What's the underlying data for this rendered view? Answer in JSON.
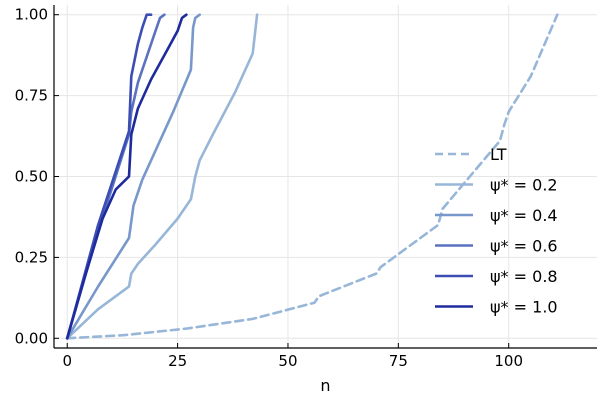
{
  "chart_data": {
    "type": "line",
    "xlabel": "n",
    "ylabel": "",
    "xlim": [
      -3,
      120
    ],
    "ylim": [
      -0.03,
      1.03
    ],
    "xticks": [
      0,
      25,
      50,
      75,
      100
    ],
    "xtick_labels": [
      "0",
      "25",
      "50",
      "75",
      "100"
    ],
    "yticks": [
      0,
      0.25,
      0.5,
      0.75,
      1.0
    ],
    "ytick_labels": [
      "0.00",
      "0.25",
      "0.50",
      "0.75",
      "1.00"
    ],
    "grid": true,
    "legend_position": "bottom-right",
    "series": [
      {
        "name": "LT",
        "style": "dashed",
        "color": "#97b6d8",
        "x": [
          0,
          13,
          27,
          42,
          56,
          57,
          70,
          71,
          84,
          85,
          98,
          99,
          100,
          105,
          111
        ],
        "y": [
          0,
          0.01,
          0.03,
          0.06,
          0.11,
          0.13,
          0.2,
          0.22,
          0.35,
          0.4,
          0.61,
          0.66,
          0.7,
          0.81,
          1.0
        ]
      },
      {
        "name": "ψ* = 0.2",
        "style": "solid",
        "color": "#97b6d8",
        "x": [
          0,
          7,
          14,
          14.5,
          16,
          20,
          25,
          28,
          29,
          30,
          33,
          38,
          42,
          43
        ],
        "y": [
          0,
          0.09,
          0.16,
          0.2,
          0.23,
          0.29,
          0.37,
          0.43,
          0.5,
          0.55,
          0.63,
          0.76,
          0.88,
          1.0
        ]
      },
      {
        "name": "ψ* = 0.4",
        "style": "solid",
        "color": "#7897cb",
        "x": [
          0,
          7,
          14,
          15,
          17,
          20,
          24,
          28,
          28.5,
          29,
          30
        ],
        "y": [
          0,
          0.16,
          0.31,
          0.41,
          0.49,
          0.58,
          0.7,
          0.83,
          0.96,
          0.99,
          1.0
        ]
      },
      {
        "name": "ψ* = 0.6",
        "style": "solid",
        "color": "#5a72c0",
        "x": [
          0,
          7,
          14,
          14.5,
          16,
          18,
          20,
          21,
          22
        ],
        "y": [
          0,
          0.33,
          0.63,
          0.7,
          0.79,
          0.87,
          0.95,
          0.99,
          1.0
        ]
      },
      {
        "name": "ψ* = 0.8",
        "style": "solid",
        "color": "#3c4db4",
        "x": [
          0,
          7,
          14,
          14.5,
          16,
          17,
          18,
          19
        ],
        "y": [
          0,
          0.35,
          0.64,
          0.81,
          0.91,
          0.96,
          1.0,
          1.0
        ]
      },
      {
        "name": "ψ* = 1.0",
        "style": "solid",
        "color": "#1f2b9c",
        "x": [
          0,
          4,
          8,
          11,
          14,
          14.5,
          16,
          19,
          23,
          25,
          26,
          27
        ],
        "y": [
          0,
          0.19,
          0.37,
          0.46,
          0.5,
          0.63,
          0.71,
          0.8,
          0.9,
          0.95,
          0.99,
          1.0
        ]
      }
    ]
  }
}
